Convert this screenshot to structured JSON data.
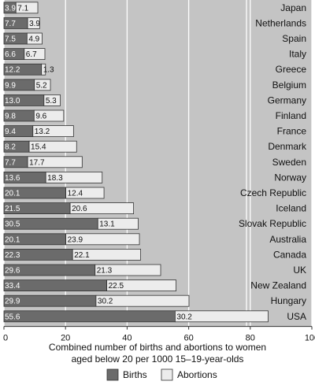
{
  "chart_data": {
    "type": "bar",
    "orientation": "horizontal",
    "stacked": true,
    "categories": [
      "Japan",
      "Netherlands",
      "Spain",
      "Italy",
      "Greece",
      "Belgium",
      "Germany",
      "Finland",
      "France",
      "Denmark",
      "Sweden",
      "Norway",
      "Czech Republic",
      "Iceland",
      "Slovak Republic",
      "Australia",
      "Canada",
      "UK",
      "New Zealand",
      "Hungary",
      "USA"
    ],
    "series": [
      {
        "name": "Births",
        "color": "#6b6b6b",
        "labels": [
          "3.9",
          "7.7",
          "7.5",
          "6.6",
          "12.2",
          "9.9",
          "13.0",
          "9.8",
          "9.4",
          "8.2",
          "7.7",
          "13.6",
          "20.1",
          "21.5",
          "30.5",
          "20.1",
          "22.3",
          "29.6",
          "33.4",
          "29.9",
          "55.6"
        ],
        "values": [
          3.9,
          7.7,
          7.5,
          6.6,
          12.2,
          9.9,
          13.0,
          9.8,
          9.4,
          8.2,
          7.7,
          13.6,
          20.1,
          21.5,
          30.5,
          20.1,
          22.3,
          29.6,
          33.4,
          29.9,
          55.6
        ]
      },
      {
        "name": "Abortions",
        "color": "#ececec",
        "labels": [
          "7.1",
          "3.9",
          "4.9",
          "6.7",
          "1.3",
          "5.2",
          "5.3",
          "9.6",
          "13.2",
          "15.4",
          "17.7",
          "18.3",
          "12.4",
          "20.6",
          "13.1",
          "23.9",
          "22.1",
          "21.3",
          "22.5",
          "30.2",
          "30.2"
        ],
        "values": [
          7.1,
          3.9,
          4.9,
          6.7,
          1.3,
          5.2,
          5.3,
          9.6,
          13.2,
          15.4,
          17.7,
          18.3,
          12.4,
          20.6,
          13.1,
          23.9,
          22.1,
          21.3,
          22.5,
          30.2,
          30.2
        ]
      }
    ],
    "xlim": [
      0,
      100
    ],
    "xticks": [
      "0",
      "20",
      "40",
      "60",
      "80",
      "100"
    ],
    "xlabel_lines": [
      "Combined number of births and abortions to women",
      "aged below 20 per 1000 15–19-year-olds"
    ],
    "legend_position": "bottom",
    "grid": true,
    "background": "#c4c4c4",
    "gridline_color": "#ffffff"
  }
}
